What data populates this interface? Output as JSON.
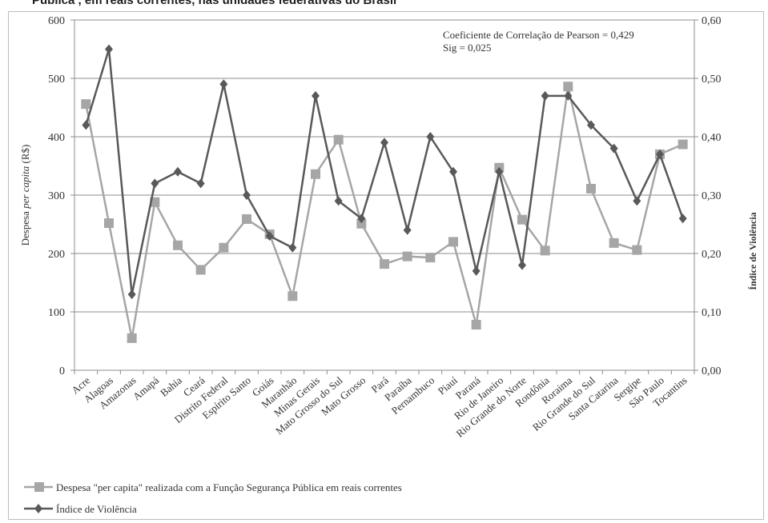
{
  "header": {
    "title_fragment": "Pública , em reais correntes, nas unidades federativas do Brasil"
  },
  "chart_data": {
    "type": "line",
    "categories": [
      "Acre",
      "Alagoas",
      "Amazonas",
      "Amapá",
      "Bahia",
      "Ceará",
      "Distrito Federal",
      "Espírito Santo",
      "Goiás",
      "Maranhão",
      "Minas Gerais",
      "Mato Grosso do Sul",
      "Mato Grosso",
      "Pará",
      "Paraíba",
      "Pernambuco",
      "Piauí",
      "Paraná",
      "Rio de Janeiro",
      "Rio Grande do Norte",
      "Rondônia",
      "Roraima",
      "Rio Grande do Sul",
      "Santa Catarina",
      "Sergipe",
      "São Paulo",
      "Tocantins"
    ],
    "series": [
      {
        "name": "Despesa \"per capita\" realizada com a Função Segurança Pública em reais correntes",
        "axis": "left",
        "color": "#a6a6a6",
        "marker": "square",
        "values": [
          456,
          252,
          55,
          288,
          214,
          172,
          210,
          259,
          233,
          127,
          336,
          395,
          251,
          182,
          195,
          193,
          220,
          78,
          347,
          258,
          205,
          486,
          311,
          218,
          206,
          370,
          387
        ]
      },
      {
        "name": "Índice de Violência",
        "axis": "right",
        "color": "#595959",
        "marker": "diamond",
        "values": [
          0.42,
          0.55,
          0.13,
          0.32,
          0.34,
          0.32,
          0.49,
          0.3,
          0.23,
          0.21,
          0.47,
          0.29,
          0.26,
          0.39,
          0.24,
          0.4,
          0.34,
          0.17,
          0.34,
          0.18,
          0.47,
          0.47,
          0.42,
          0.38,
          0.29,
          0.37,
          0.26
        ]
      }
    ],
    "ylabel_prefix": "Despesa ",
    "ylabel_italic": "per capita",
    "ylabel_suffix": " (R$)",
    "y2label": "Índice de Violência",
    "ylim": [
      0,
      600
    ],
    "y2lim": [
      0,
      0.6
    ],
    "yticks": [
      "0",
      "100",
      "200",
      "300",
      "400",
      "500",
      "600"
    ],
    "y2ticks": [
      "0,00",
      "0,10",
      "0,20",
      "0,30",
      "0,40",
      "0,50",
      "0,60"
    ],
    "annotation": [
      "Coeficiente de Correlação de Pearson = 0,429",
      "Sig = 0,025"
    ],
    "grid": true,
    "legend_position": "bottom-left"
  }
}
